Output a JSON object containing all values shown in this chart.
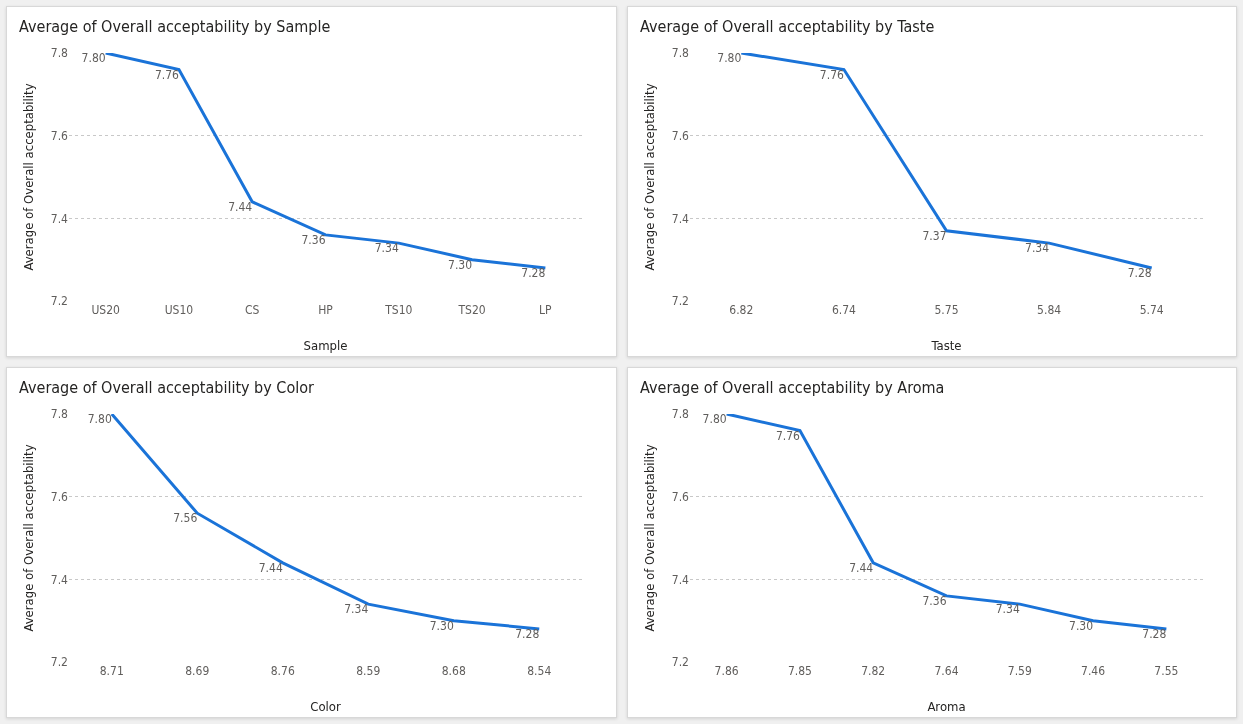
{
  "chart_data": [
    {
      "type": "line",
      "title": "Average of Overall acceptability by Sample",
      "xlabel": "Sample",
      "ylabel": "Average of Overall acceptability",
      "categories": [
        "US20",
        "US10",
        "CS",
        "HP",
        "TS10",
        "TS20",
        "LP"
      ],
      "series": [
        {
          "color": "#1a73d8",
          "values": [
            7.8,
            7.76,
            7.44,
            7.36,
            7.34,
            7.3,
            7.28
          ],
          "value_labels": [
            "7.80",
            "7.76",
            "7.44",
            "7.36",
            "7.34",
            "7.30",
            "7.28"
          ]
        }
      ],
      "ylim": [
        7.2,
        7.8
      ],
      "yticks": [
        7.2,
        7.4,
        7.6,
        7.8
      ],
      "grid": "y",
      "marker": "none",
      "line_style": "solid"
    },
    {
      "type": "line",
      "title": "Average of Overall acceptability by Taste",
      "xlabel": "Taste",
      "ylabel": "Average of Overall acceptability",
      "categories": [
        "6.82",
        "6.74",
        "5.75",
        "5.84",
        "5.74"
      ],
      "series": [
        {
          "color": "#1a73d8",
          "values": [
            7.8,
            7.76,
            7.37,
            7.34,
            7.28
          ],
          "value_labels": [
            "7.80",
            "7.76",
            "7.37",
            "7.34",
            "7.28"
          ]
        }
      ],
      "ylim": [
        7.2,
        7.8
      ],
      "yticks": [
        7.2,
        7.4,
        7.6,
        7.8
      ],
      "grid": "y",
      "marker": "none",
      "line_style": "solid"
    },
    {
      "type": "line",
      "title": "Average of Overall acceptability by Color",
      "xlabel": "Color",
      "ylabel": "Average of Overall acceptability",
      "categories": [
        "8.71",
        "8.69",
        "8.76",
        "8.59",
        "8.68",
        "8.54"
      ],
      "series": [
        {
          "color": "#1a73d8",
          "values": [
            7.8,
            7.56,
            7.44,
            7.34,
            7.3,
            7.28
          ],
          "value_labels": [
            "7.80",
            "7.56",
            "7.44",
            "7.34",
            "7.30",
            "7.28"
          ]
        }
      ],
      "ylim": [
        7.2,
        7.8
      ],
      "yticks": [
        7.2,
        7.4,
        7.6,
        7.8
      ],
      "grid": "y",
      "marker": "none",
      "line_style": "solid"
    },
    {
      "type": "line",
      "title": "Average of Overall acceptability by Aroma",
      "xlabel": "Aroma",
      "ylabel": "Average of Overall acceptability",
      "categories": [
        "7.86",
        "7.85",
        "7.82",
        "7.64",
        "7.59",
        "7.46",
        "7.55"
      ],
      "series": [
        {
          "color": "#1a73d8",
          "values": [
            7.8,
            7.76,
            7.44,
            7.36,
            7.34,
            7.3,
            7.28
          ],
          "value_labels": [
            "7.80",
            "7.76",
            "7.44",
            "7.36",
            "7.34",
            "7.30",
            "7.28"
          ]
        }
      ],
      "ylim": [
        7.2,
        7.8
      ],
      "yticks": [
        7.2,
        7.4,
        7.6,
        7.8
      ],
      "grid": "y",
      "marker": "none",
      "line_style": "solid"
    }
  ]
}
